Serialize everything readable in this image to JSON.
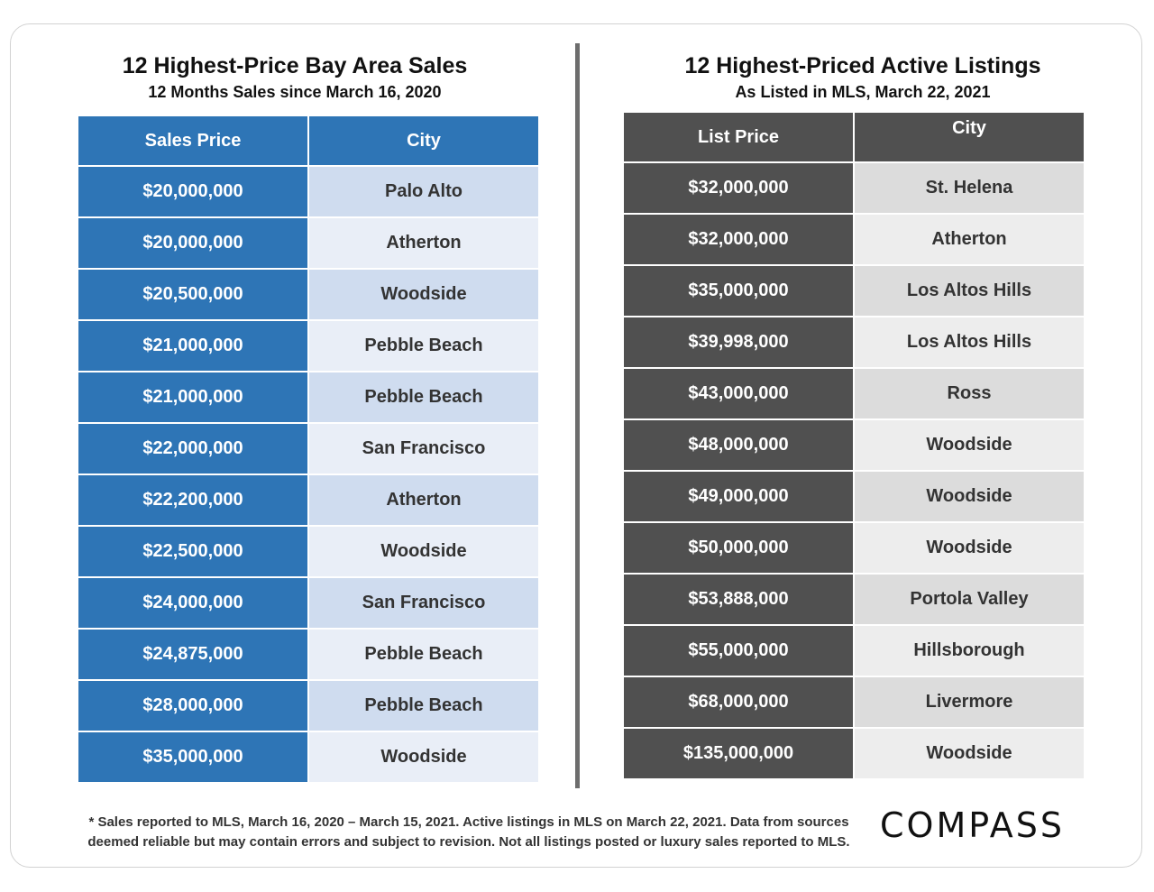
{
  "sales": {
    "title": "12 Highest-Price Bay Area Sales",
    "subtitle": "12 Months Sales since March 16, 2020",
    "headers": {
      "price": "Sales Price",
      "city": "City"
    },
    "rows": [
      {
        "price": "$20,000,000",
        "city": "Palo Alto"
      },
      {
        "price": "$20,000,000",
        "city": "Atherton"
      },
      {
        "price": "$20,500,000",
        "city": "Woodside"
      },
      {
        "price": "$21,000,000",
        "city": "Pebble Beach"
      },
      {
        "price": "$21,000,000",
        "city": "Pebble Beach"
      },
      {
        "price": "$22,000,000",
        "city": "San Francisco"
      },
      {
        "price": "$22,200,000",
        "city": "Atherton"
      },
      {
        "price": "$22,500,000",
        "city": "Woodside"
      },
      {
        "price": "$24,000,000",
        "city": "San Francisco"
      },
      {
        "price": "$24,875,000",
        "city": "Pebble Beach"
      },
      {
        "price": "$28,000,000",
        "city": "Pebble Beach"
      },
      {
        "price": "$35,000,000",
        "city": "Woodside"
      }
    ]
  },
  "listings": {
    "title": "12 Highest-Priced Active Listings",
    "subtitle": "As Listed in MLS, March 22, 2021",
    "headers": {
      "price": "List Price",
      "city": "City"
    },
    "rows": [
      {
        "price": "$32,000,000",
        "city": "St. Helena"
      },
      {
        "price": "$32,000,000",
        "city": "Atherton"
      },
      {
        "price": "$35,000,000",
        "city": "Los Altos Hills"
      },
      {
        "price": "$39,998,000",
        "city": "Los Altos Hills"
      },
      {
        "price": "$43,000,000",
        "city": "Ross"
      },
      {
        "price": "$48,000,000",
        "city": "Woodside"
      },
      {
        "price": "$49,000,000",
        "city": "Woodside"
      },
      {
        "price": "$50,000,000",
        "city": "Woodside"
      },
      {
        "price": "$53,888,000",
        "city": "Portola Valley"
      },
      {
        "price": "$55,000,000",
        "city": "Hillsborough"
      },
      {
        "price": "$68,000,000",
        "city": "Livermore"
      },
      {
        "price": "$135,000,000",
        "city": "Woodside"
      }
    ]
  },
  "footnote": {
    "line1": "* Sales reported to MLS, March 16, 2020 – March 15, 2021. Active listings in MLS on March 22, 2021. Data from sources",
    "line2": "deemed reliable but may contain errors and subject to revision. Not all listings posted or luxury sales reported to MLS."
  },
  "brand": {
    "logo_text": "COMPASS"
  },
  "colors": {
    "sales_accent": "#2e75b6",
    "listings_accent": "#505050"
  }
}
